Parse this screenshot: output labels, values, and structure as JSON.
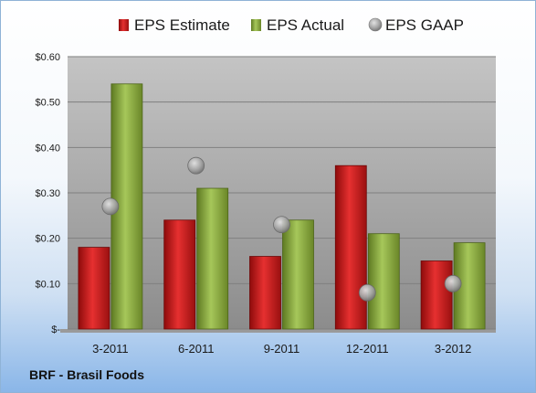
{
  "company": "BRF - Brasil Foods",
  "colors": {
    "estimate": "#cc1f1f",
    "actual": "#8fb040",
    "gaap": "#a8a8a8"
  },
  "chart_data": {
    "type": "bar",
    "categories": [
      "3-2011",
      "6-2011",
      "9-2011",
      "12-2011",
      "3-2012"
    ],
    "series": [
      {
        "name": "EPS Estimate",
        "kind": "bar",
        "values": [
          0.18,
          0.24,
          0.16,
          0.36,
          0.15
        ]
      },
      {
        "name": "EPS Actual",
        "kind": "bar",
        "values": [
          0.54,
          0.31,
          0.24,
          0.21,
          0.19
        ]
      },
      {
        "name": "EPS GAAP",
        "kind": "marker",
        "values": [
          0.27,
          0.36,
          0.23,
          0.08,
          0.1
        ]
      }
    ],
    "ylim": [
      0,
      0.6
    ],
    "yticks": [
      0,
      0.1,
      0.2,
      0.3,
      0.4,
      0.5,
      0.6
    ],
    "ytick_labels": [
      "$-",
      "$0.10",
      "$0.20",
      "$0.30",
      "$0.40",
      "$0.50",
      "$0.60"
    ],
    "legend": "top",
    "grid": true
  }
}
